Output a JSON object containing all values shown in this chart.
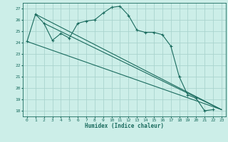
{
  "xlabel": "Humidex (Indice chaleur)",
  "background_color": "#cceee8",
  "grid_color": "#aad4ce",
  "line_color": "#1a6b5e",
  "xlim": [
    -0.5,
    23.5
  ],
  "ylim": [
    17.5,
    27.5
  ],
  "yticks": [
    18,
    19,
    20,
    21,
    22,
    23,
    24,
    25,
    26,
    27
  ],
  "xticks": [
    0,
    1,
    2,
    3,
    4,
    5,
    6,
    7,
    8,
    9,
    10,
    11,
    12,
    13,
    14,
    15,
    16,
    17,
    18,
    19,
    20,
    21,
    22,
    23
  ],
  "main_x": [
    0,
    1,
    2,
    3,
    4,
    5,
    6,
    7,
    8,
    9,
    10,
    11,
    12,
    13,
    14,
    15,
    16,
    17,
    18,
    19,
    20,
    21,
    22
  ],
  "main_y": [
    24.1,
    26.5,
    25.7,
    24.2,
    24.8,
    24.4,
    25.7,
    25.9,
    26.0,
    26.6,
    27.1,
    27.2,
    26.4,
    25.1,
    24.9,
    24.9,
    24.7,
    23.7,
    21.0,
    19.4,
    19.1,
    18.0,
    18.1
  ],
  "straight_lines": [
    {
      "x": [
        0,
        23
      ],
      "y": [
        24.1,
        18.1
      ]
    },
    {
      "x": [
        1,
        23
      ],
      "y": [
        26.5,
        18.1
      ]
    },
    {
      "x": [
        2,
        23
      ],
      "y": [
        25.7,
        18.1
      ]
    }
  ]
}
